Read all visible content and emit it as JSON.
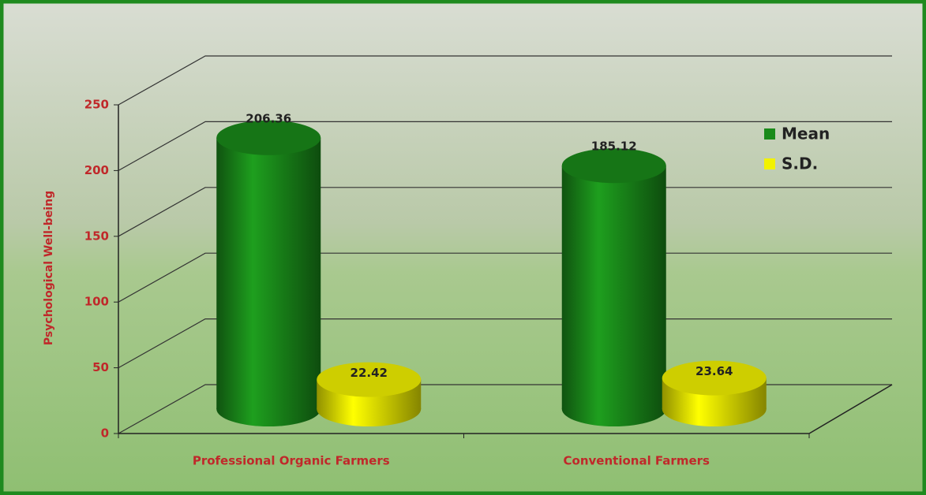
{
  "chart_data": {
    "type": "bar3d",
    "y_label": "Psychological Well-being",
    "categories": [
      "Professional Organic Farmers",
      "Conventional Farmers"
    ],
    "series": [
      {
        "name": "Mean",
        "color": "#1a8a1a",
        "values": [
          206.36,
          185.12
        ]
      },
      {
        "name": "S.D.",
        "color": "#f2f200",
        "values": [
          22.42,
          23.64
        ]
      }
    ],
    "ylim": [
      0,
      250
    ],
    "yticks": [
      0,
      50,
      100,
      150,
      200,
      250
    ],
    "grid": true
  }
}
